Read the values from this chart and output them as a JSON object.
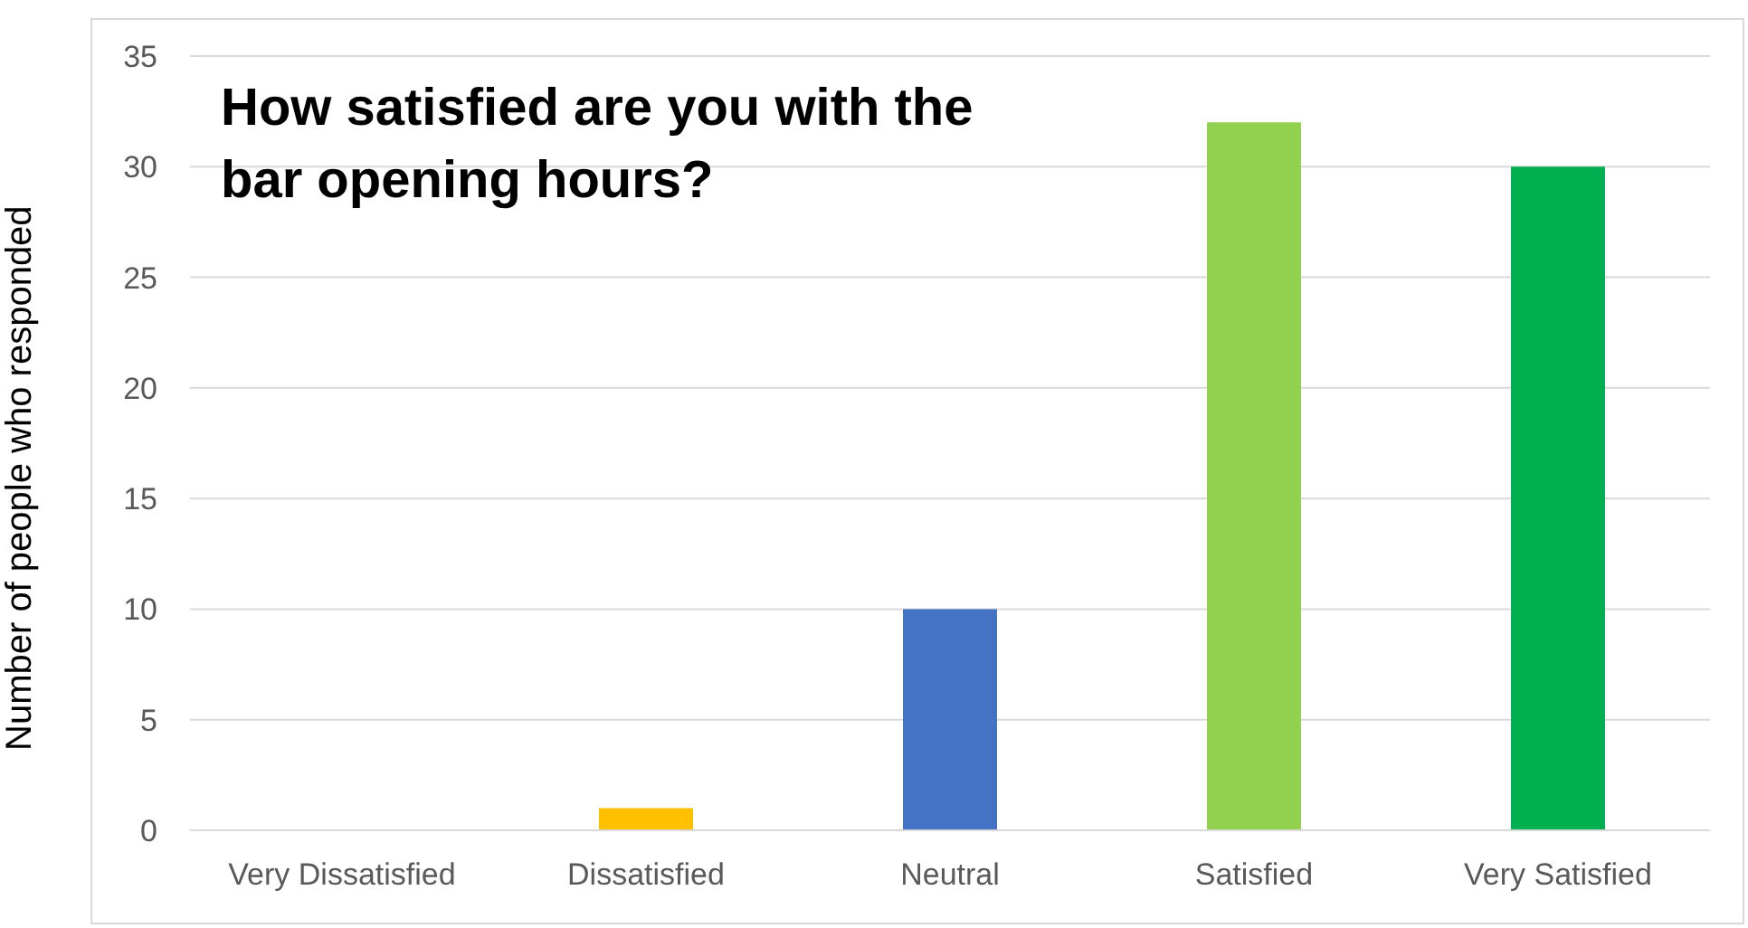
{
  "chart_data": {
    "type": "bar",
    "title": "How satisfied are you with the bar opening hours?",
    "ylabel": "Number of people who responded",
    "categories": [
      "Very Dissatisfied",
      "Dissatisfied",
      "Neutral",
      "Satisfied",
      "Very Satisfied"
    ],
    "values": [
      0,
      1,
      10,
      32,
      30
    ],
    "colors": [
      "#c00000",
      "#ffc000",
      "#4472c4",
      "#92d050",
      "#00b050"
    ],
    "ylim": [
      0,
      35
    ],
    "yticks": [
      0,
      5,
      10,
      15,
      20,
      25,
      30,
      35
    ],
    "grid": "y",
    "legend": false
  }
}
